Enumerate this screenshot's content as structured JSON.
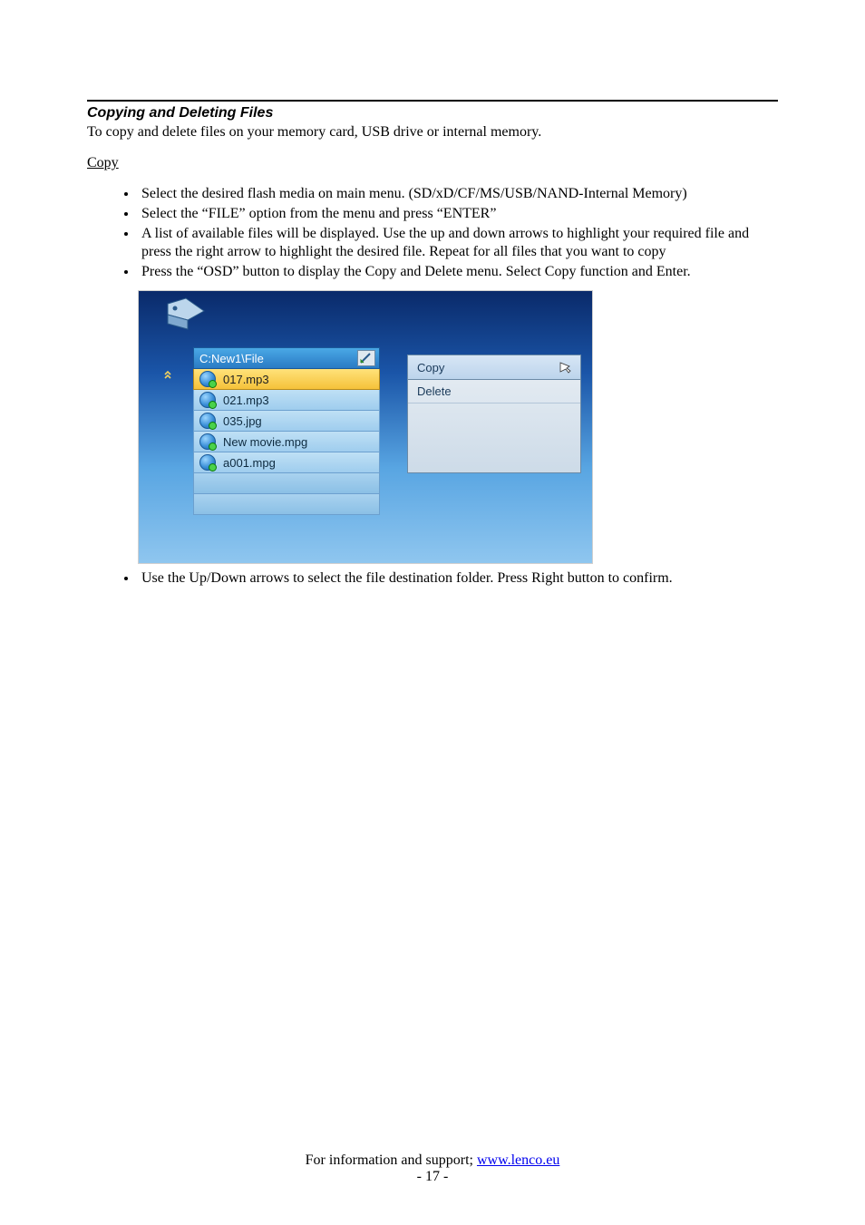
{
  "heading": "Copying and Deleting Files",
  "intro": "To copy and delete files on your memory card, USB drive or internal memory.",
  "subhead": "Copy",
  "bullets_top": [
    "Select the desired flash media on main menu. (SD/xD/CF/MS/USB/NAND-Internal Memory)",
    "Select the “FILE” option from the menu and press “ENTER”",
    "A list of available files will be displayed. Use the up and down arrows to highlight your required file and press the right arrow to highlight the desired file. Repeat for all files that you want to copy",
    "Press the “OSD” button to display the Copy and Delete menu. Select Copy function and Enter."
  ],
  "bullets_bottom": [
    "Use the Up/Down arrows to select the file destination folder. Press Right button to confirm."
  ],
  "screenshot": {
    "path": "C:New1\\File",
    "files": [
      {
        "name": "017.mp3",
        "selected": true
      },
      {
        "name": "021.mp3",
        "selected": false
      },
      {
        "name": "035.jpg",
        "selected": false
      },
      {
        "name": "New movie.mpg",
        "selected": false
      },
      {
        "name": "a001.mpg",
        "selected": false
      }
    ],
    "empty_rows": 2,
    "menu": [
      {
        "label": "Copy",
        "selected": true
      },
      {
        "label": "Delete",
        "selected": false
      }
    ],
    "colors": {
      "bg_grad_top": "#0a2a6a",
      "bg_grad_bottom": "#8fc6ef",
      "row_sel_top": "#ffe27a",
      "row_sel_bottom": "#f5c23a",
      "menu_sel": "#bcd4ec"
    }
  },
  "footer": {
    "prefix": "For information and support; ",
    "link_text": "www.lenco.eu",
    "page_number": "- 17 -"
  }
}
